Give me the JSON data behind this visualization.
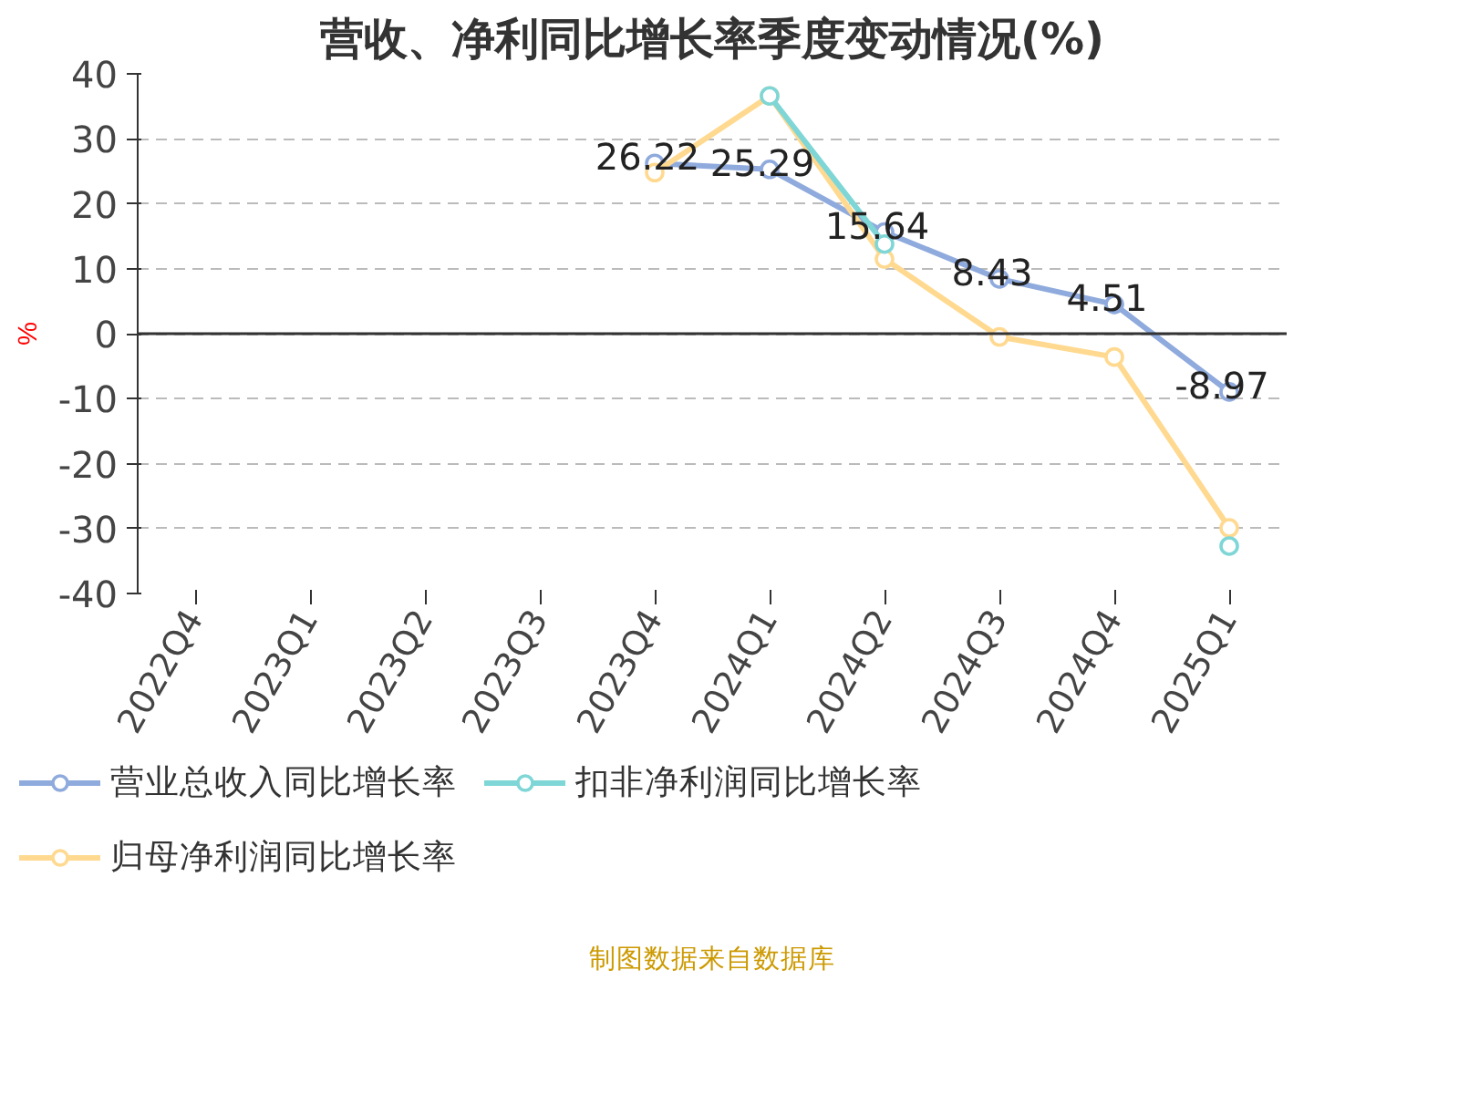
{
  "chart_data": {
    "type": "line",
    "title": "营收、净利同比增长率季度变动情况(%)",
    "ylabel": "%",
    "categories": [
      "2022Q4",
      "2023Q1",
      "2023Q2",
      "2023Q3",
      "2023Q4",
      "2024Q1",
      "2024Q2",
      "2024Q3",
      "2024Q4",
      "2025Q1"
    ],
    "series": [
      {
        "name": "营业总收入同比增长率",
        "color": "#8faadc",
        "values": [
          null,
          null,
          null,
          null,
          26.22,
          25.29,
          15.64,
          8.43,
          4.51,
          -8.97
        ],
        "value_labels": [
          null,
          null,
          null,
          null,
          "26.22",
          "25.29",
          "15.64",
          "8.43",
          "4.51",
          "-8.97"
        ]
      },
      {
        "name": "归母净利润同比增长率",
        "color": "#ffd98f",
        "values": [
          null,
          null,
          null,
          null,
          24.8,
          36.6,
          11.5,
          -0.5,
          -3.6,
          -29.9
        ]
      },
      {
        "name": "扣非净利润同比增长率",
        "color": "#7fd6d6",
        "values": [
          null,
          null,
          null,
          null,
          null,
          36.6,
          13.8,
          null,
          null,
          -32.7
        ]
      }
    ],
    "ylim": [
      -40,
      40
    ],
    "yticks": [
      -40,
      -30,
      -20,
      -10,
      0,
      10,
      20,
      30,
      40
    ],
    "grid": "y",
    "legend": "bottom",
    "marker": "circle",
    "line_style": "solid",
    "annotations": [
      "制图数据来自数据库"
    ]
  }
}
